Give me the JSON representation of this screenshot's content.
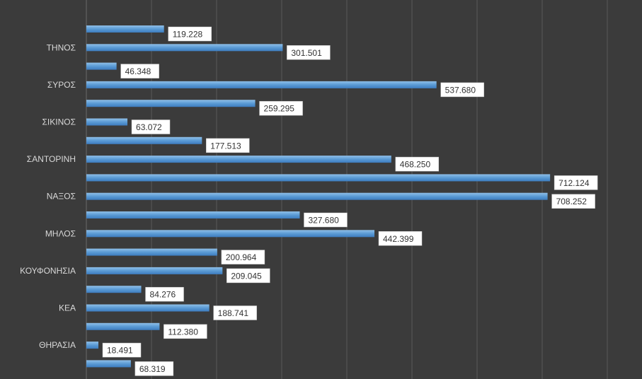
{
  "chart_data": {
    "type": "bar",
    "orientation": "horizontal",
    "categories": [
      "",
      "ΤΗΝΟΣ",
      "",
      "ΣΥΡΟΣ",
      "",
      "ΣΙΚΙΝΟΣ",
      "",
      "ΣΑΝΤΟΡΙΝΗ",
      "",
      "ΝΑΞΟΣ",
      "",
      "ΜΗΛΟΣ",
      "",
      "ΚΟΥΦΟΝΗΣΙΑ",
      "",
      "ΚΕΑ",
      "",
      "ΘΗΡΑΣΙΑ",
      ""
    ],
    "values": [
      119228,
      301501,
      46348,
      537680,
      259295,
      63072,
      177513,
      468250,
      712124,
      708252,
      327680,
      442399,
      200964,
      209045,
      84276,
      188741,
      112380,
      18491,
      68319
    ],
    "value_labels": [
      "119.228",
      "301.501",
      "46.348",
      "537.680",
      "259.295",
      "63.072",
      "177.513",
      "468.250",
      "712.124",
      "708.252",
      "327.680",
      "442.399",
      "200.964",
      "209.045",
      "84.276",
      "188.741",
      "112.380",
      "18.491",
      "68.319"
    ],
    "xlim": [
      0,
      800000
    ],
    "grid": true,
    "bar_color": "#5b9bd5",
    "background_color": "#3b3b3b",
    "gridline_color": "#5a5a5a"
  }
}
